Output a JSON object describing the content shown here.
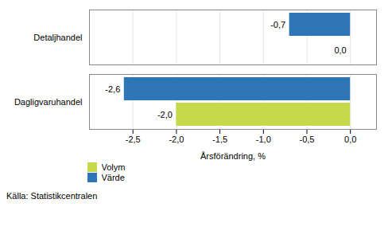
{
  "chart_data": {
    "type": "bar",
    "orientation": "horizontal",
    "categories": [
      "Detaljhandel",
      "Dagligvaruhandel"
    ],
    "series": [
      {
        "name": "Värde",
        "color": "#2E75B6",
        "values": [
          -0.7,
          -2.6
        ],
        "value_labels": [
          "-0,7",
          "-2,6"
        ]
      },
      {
        "name": "Volym",
        "color": "#C5D94B",
        "values": [
          0.0,
          -2.0
        ],
        "value_labels": [
          "0,0",
          "-2,0"
        ]
      }
    ],
    "xlabel": "Årsförändring, %",
    "xlim": [
      -3.0,
      0.3
    ],
    "xticks": [
      {
        "value": -2.5,
        "label": "-2,5"
      },
      {
        "value": -2.0,
        "label": "-2,0"
      },
      {
        "value": -1.5,
        "label": "-1,5"
      },
      {
        "value": -1.0,
        "label": "-1,0"
      },
      {
        "value": -0.5,
        "label": "-0,5"
      },
      {
        "value": 0.0,
        "label": "0,0"
      }
    ],
    "grid": true,
    "data_labels": true,
    "legend": "bottom",
    "caption": "Källa: Statistikcentralen"
  }
}
